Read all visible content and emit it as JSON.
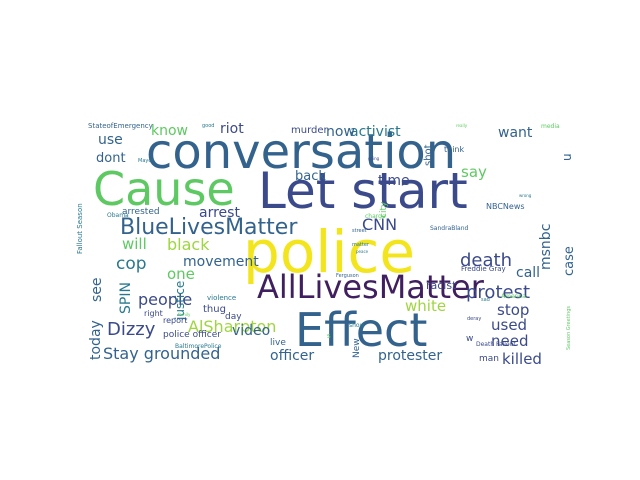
{
  "palette": {
    "background": "#ffffff",
    "dark_purple": "#3f1f5e",
    "indigo": "#3b4a8a",
    "blue": "#33638d",
    "teal": "#29788e",
    "green_teal": "#26a784",
    "green": "#5ec962",
    "lime": "#9fd640",
    "yellow": "#f3e51d"
  },
  "words": [
    {
      "text": "conversation",
      "color": "blue"
    },
    {
      "text": "Cause",
      "color": "green"
    },
    {
      "text": "Let start",
      "color": "indigo"
    },
    {
      "text": "police",
      "color": "yellow"
    },
    {
      "text": "AllLivesMatter",
      "color": "dark_purple"
    },
    {
      "text": "Effect",
      "color": "blue"
    },
    {
      "text": "BlueLivesMatter",
      "color": "blue"
    },
    {
      "text": "Stay grounded",
      "color": "blue"
    },
    {
      "text": "black",
      "color": "lime"
    },
    {
      "text": "death",
      "color": "indigo"
    },
    {
      "text": "protest",
      "color": "indigo"
    },
    {
      "text": "people",
      "color": "indigo"
    },
    {
      "text": "AlSharpton",
      "color": "lime"
    },
    {
      "text": "Dizzy",
      "color": "indigo"
    },
    {
      "text": "killed",
      "color": "indigo"
    },
    {
      "text": "activist",
      "color": "teal"
    },
    {
      "text": "riot",
      "color": "indigo"
    },
    {
      "text": "know",
      "color": "green"
    },
    {
      "text": "now",
      "color": "blue"
    },
    {
      "text": "use",
      "color": "blue"
    },
    {
      "text": "want",
      "color": "blue"
    },
    {
      "text": "say",
      "color": "green"
    },
    {
      "text": "dont",
      "color": "blue"
    },
    {
      "text": "time",
      "color": "indigo"
    },
    {
      "text": "back",
      "color": "blue"
    },
    {
      "text": "arrest",
      "color": "indigo"
    },
    {
      "text": "CNN",
      "color": "indigo"
    },
    {
      "text": "will",
      "color": "green"
    },
    {
      "text": "cop",
      "color": "teal"
    },
    {
      "text": "movement",
      "color": "blue"
    },
    {
      "text": "one",
      "color": "green"
    },
    {
      "text": "see",
      "color": "blue"
    },
    {
      "text": "SPIN",
      "color": "teal"
    },
    {
      "text": "justice",
      "color": "teal"
    },
    {
      "text": "today",
      "color": "blue"
    },
    {
      "text": "video",
      "color": "blue"
    },
    {
      "text": "white",
      "color": "lime"
    },
    {
      "text": "stop",
      "color": "indigo"
    },
    {
      "text": "call",
      "color": "blue"
    },
    {
      "text": "used",
      "color": "indigo"
    },
    {
      "text": "need",
      "color": "indigo"
    },
    {
      "text": "officer",
      "color": "blue"
    },
    {
      "text": "protester",
      "color": "blue"
    },
    {
      "text": "msnbc",
      "color": "blue"
    },
    {
      "text": "case",
      "color": "blue"
    },
    {
      "text": "u",
      "color": "blue"
    },
    {
      "text": "arrested",
      "color": "blue"
    },
    {
      "text": "police officer",
      "color": "indigo"
    },
    {
      "text": "racist",
      "color": "indigo"
    },
    {
      "text": "murder",
      "color": "indigo"
    },
    {
      "text": "shot",
      "color": "blue"
    },
    {
      "text": "city",
      "color": "green"
    },
    {
      "text": "NBCNews",
      "color": "blue"
    },
    {
      "text": "Freddie Gray",
      "color": "indigo"
    },
    {
      "text": "thug",
      "color": "indigo"
    },
    {
      "text": "day",
      "color": "indigo"
    },
    {
      "text": "right",
      "color": "indigo"
    },
    {
      "text": "report",
      "color": "indigo"
    },
    {
      "text": "live",
      "color": "blue"
    },
    {
      "text": "New",
      "color": "blue"
    },
    {
      "text": "man",
      "color": "indigo"
    },
    {
      "text": "StateofEmergency",
      "color": "blue"
    },
    {
      "text": "Fallout Season",
      "color": "teal"
    },
    {
      "text": "Death Fallout",
      "color": "indigo"
    },
    {
      "text": "SandraBland",
      "color": "blue"
    },
    {
      "text": "think",
      "color": "blue"
    },
    {
      "text": "BaltimorePolice",
      "color": "teal"
    },
    {
      "text": "violence",
      "color": "teal"
    },
    {
      "text": "charge",
      "color": "green"
    },
    {
      "text": "America",
      "color": "green"
    },
    {
      "text": "Obama",
      "color": "teal"
    },
    {
      "text": "Mayor",
      "color": "teal"
    },
    {
      "text": "Season Greetings",
      "color": "green"
    },
    {
      "text": "good",
      "color": "teal"
    },
    {
      "text": "media",
      "color": "green"
    },
    {
      "text": "street",
      "color": "blue"
    },
    {
      "text": "show",
      "color": "teal"
    },
    {
      "text": "matter",
      "color": "teal"
    },
    {
      "text": "really",
      "color": "green"
    },
    {
      "text": "going",
      "color": "indigo"
    },
    {
      "text": "s",
      "color": "green"
    },
    {
      "text": "w",
      "color": "indigo"
    },
    {
      "text": "deray",
      "color": "indigo"
    },
    {
      "text": "peace",
      "color": "teal"
    },
    {
      "text": "sad",
      "color": "teal"
    },
    {
      "text": "family",
      "color": "green"
    },
    {
      "text": "Ferguson",
      "color": "blue"
    },
    {
      "text": "wrong",
      "color": "teal"
    }
  ]
}
